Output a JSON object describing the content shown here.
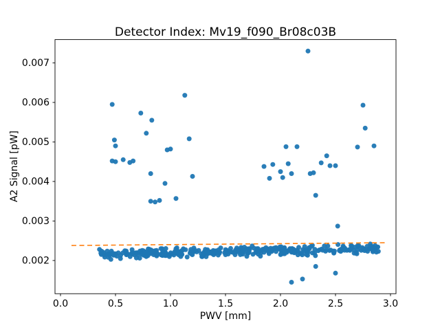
{
  "figure": {
    "background": "#ffffff"
  },
  "chart_data": {
    "type": "scatter",
    "title": "Detector Index: Mv19_f090_Br08c03B",
    "xlabel": "PWV [mm]",
    "ylabel": "A2 Signal [pW]",
    "xlim": [
      -0.05,
      3.05
    ],
    "ylim": [
      0.00116,
      0.00759
    ],
    "x_ticks": [
      0.0,
      0.5,
      1.0,
      1.5,
      2.0,
      2.5,
      3.0
    ],
    "y_ticks": [
      0.002,
      0.003,
      0.004,
      0.005,
      0.006,
      0.007
    ],
    "grid": false,
    "legend": null,
    "marker_color": "#1f77b4",
    "marker_radius_px": 3.5,
    "fit_line": {
      "style": "dashed",
      "color": "#ff7f0e",
      "x": [
        0.1,
        2.95
      ],
      "y": [
        0.00238,
        0.00245
      ]
    },
    "outlier_points": [
      [
        0.47,
        0.00595
      ],
      [
        0.49,
        0.00505
      ],
      [
        0.5,
        0.0049
      ],
      [
        0.47,
        0.00452
      ],
      [
        0.5,
        0.0045
      ],
      [
        0.57,
        0.00455
      ],
      [
        0.63,
        0.00448
      ],
      [
        0.66,
        0.00452
      ],
      [
        0.73,
        0.00573
      ],
      [
        0.78,
        0.00522
      ],
      [
        0.83,
        0.00555
      ],
      [
        0.82,
        0.0042
      ],
      [
        0.82,
        0.0035
      ],
      [
        0.86,
        0.00348
      ],
      [
        0.9,
        0.00352
      ],
      [
        0.95,
        0.00395
      ],
      [
        0.97,
        0.0048
      ],
      [
        1.0,
        0.00482
      ],
      [
        1.05,
        0.00357
      ],
      [
        1.13,
        0.00618
      ],
      [
        1.17,
        0.00508
      ],
      [
        1.2,
        0.00413
      ],
      [
        1.85,
        0.00438
      ],
      [
        1.9,
        0.00408
      ],
      [
        1.93,
        0.00443
      ],
      [
        2.0,
        0.00425
      ],
      [
        2.02,
        0.0041
      ],
      [
        2.05,
        0.00488
      ],
      [
        2.07,
        0.00445
      ],
      [
        2.1,
        0.0042
      ],
      [
        2.15,
        0.00488
      ],
      [
        2.25,
        0.0073
      ],
      [
        2.27,
        0.0042
      ],
      [
        2.3,
        0.00422
      ],
      [
        2.32,
        0.00365
      ],
      [
        2.37,
        0.00447
      ],
      [
        2.42,
        0.00465
      ],
      [
        2.45,
        0.0044
      ],
      [
        2.5,
        0.0044
      ],
      [
        2.52,
        0.00287
      ],
      [
        2.7,
        0.00487
      ],
      [
        2.75,
        0.00593
      ],
      [
        2.77,
        0.00535
      ],
      [
        2.85,
        0.0049
      ],
      [
        2.1,
        0.00145
      ],
      [
        2.2,
        0.00153
      ],
      [
        2.32,
        0.00185
      ],
      [
        2.5,
        0.00168
      ]
    ],
    "dense_band": {
      "description": "dense near-flat cluster of points along the fit line",
      "count": 380,
      "x_min": 0.35,
      "x_max": 2.9,
      "y_intercept": 0.00213,
      "y_slope": 6e-05,
      "y_jitter": 0.00011,
      "seed": 42
    }
  }
}
